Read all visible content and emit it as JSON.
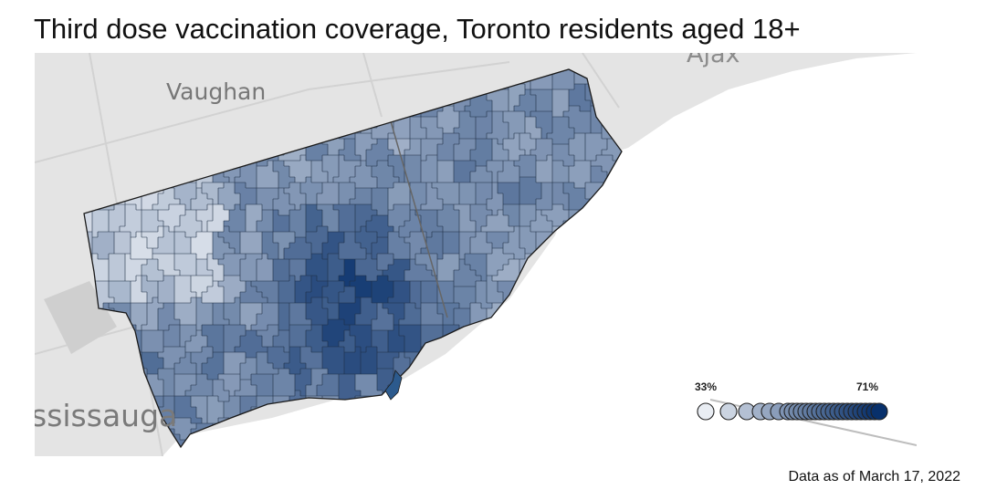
{
  "title": "Third dose vaccination coverage, Toronto residents aged 18+",
  "footer": "Data as of March 17, 2022",
  "places": {
    "vaughan": "Vaughan",
    "mississauga": "ssissauga",
    "ajax": "Ajax"
  },
  "legend": {
    "min_label": "33%",
    "max_label": "71%",
    "scale_low_color": "#e9edf3",
    "scale_high_color": "#08306b",
    "bubble_values": [
      33,
      38,
      42,
      45,
      47,
      49,
      51,
      52,
      53,
      54,
      55,
      56,
      57,
      58,
      59,
      60,
      61,
      62,
      63,
      64,
      65,
      66,
      67,
      68,
      69,
      70,
      71
    ]
  },
  "colors": {
    "basemap": "#e3e3e3",
    "water": "#ffffff",
    "border": "#1a1a1a"
  }
}
